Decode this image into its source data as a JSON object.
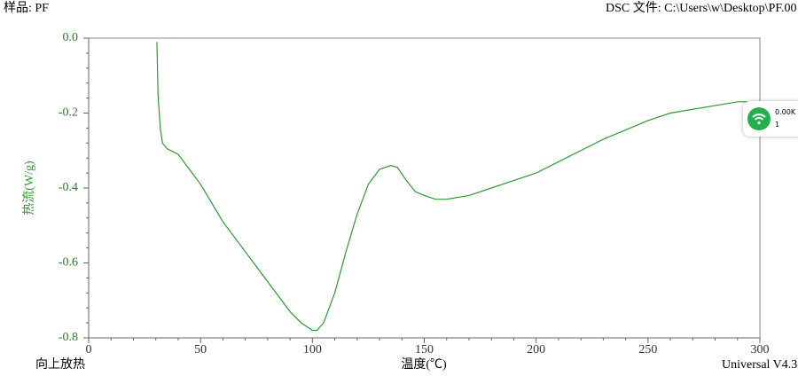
{
  "chart_data": {
    "type": "line",
    "sample_label": "样品: PF",
    "file_label": "DSC 文件: C:\\Users\\w\\Desktop\\PF.00",
    "ylabel": "热流(W/g)",
    "xlabel": "温度(℃)",
    "exo_label": "向上放热",
    "software_label": "Universal V4.3",
    "xlim": [
      0,
      300
    ],
    "xticks": [
      0,
      50,
      100,
      150,
      200,
      250,
      300
    ],
    "ylim": [
      -0.8,
      0
    ],
    "yticks": [
      {
        "value": 0,
        "label": "0.0"
      },
      -0.2,
      -0.4,
      -0.6,
      -0.8
    ],
    "series": [
      {
        "color": "#2e9a2e",
        "x": [
          30.5,
          31,
          32,
          33,
          35,
          40,
          45,
          50,
          55,
          60,
          65,
          70,
          75,
          80,
          85,
          90,
          95,
          100,
          102,
          105,
          110,
          115,
          120,
          125,
          130,
          135,
          138,
          142,
          146,
          150,
          155,
          160,
          170,
          180,
          190,
          200,
          210,
          220,
          230,
          240,
          250,
          260,
          270,
          280,
          290,
          298
        ],
        "values": [
          -0.01,
          -0.15,
          -0.24,
          -0.28,
          -0.295,
          -0.31,
          -0.35,
          -0.39,
          -0.44,
          -0.49,
          -0.53,
          -0.57,
          -0.61,
          -0.65,
          -0.69,
          -0.73,
          -0.76,
          -0.78,
          -0.78,
          -0.76,
          -0.68,
          -0.57,
          -0.47,
          -0.39,
          -0.35,
          -0.34,
          -0.345,
          -0.38,
          -0.41,
          -0.42,
          -0.43,
          -0.43,
          -0.42,
          -0.4,
          -0.38,
          -0.36,
          -0.33,
          -0.3,
          -0.27,
          -0.245,
          -0.22,
          -0.2,
          -0.19,
          -0.18,
          -0.17,
          -0.17
        ]
      }
    ]
  },
  "widget": {
    "speed": "0.00K",
    "count": "1"
  }
}
